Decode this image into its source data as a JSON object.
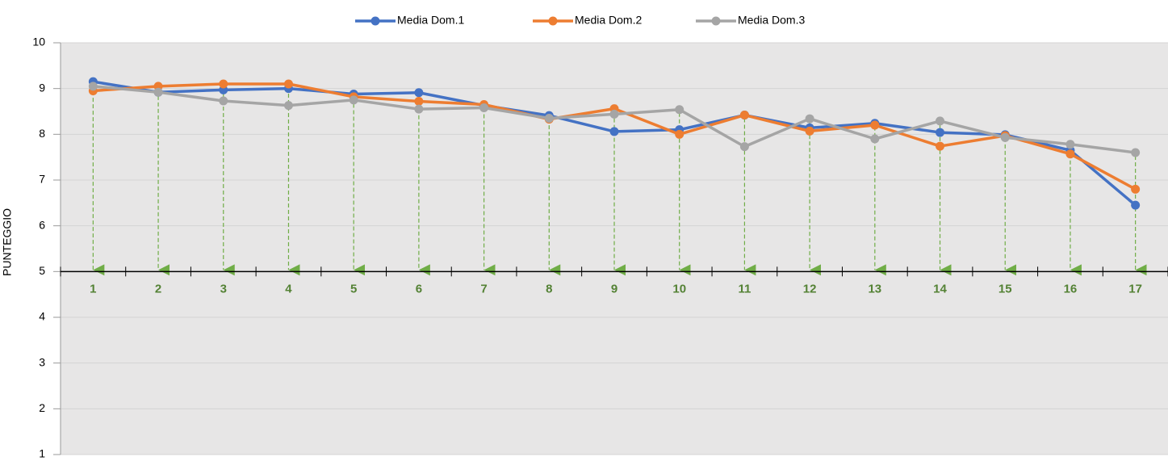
{
  "chart_data": {
    "type": "line",
    "y_label": "PUNTEGGIO",
    "categories": [
      "1",
      "2",
      "3",
      "4",
      "5",
      "6",
      "7",
      "8",
      "9",
      "10",
      "11",
      "12",
      "13",
      "14",
      "15",
      "16",
      "17"
    ],
    "series": [
      {
        "name": "Media Dom.1",
        "color": "#4472c4",
        "values": [
          9.15,
          8.92,
          8.97,
          9.0,
          8.88,
          8.91,
          8.63,
          8.41,
          8.06,
          8.1,
          8.42,
          8.14,
          8.24,
          8.04,
          7.99,
          7.65,
          6.45
        ]
      },
      {
        "name": "Media Dom.2",
        "color": "#ed7d31",
        "values": [
          8.95,
          9.05,
          9.1,
          9.1,
          8.82,
          8.72,
          8.65,
          8.33,
          8.56,
          8.0,
          8.42,
          8.07,
          8.2,
          7.74,
          7.97,
          7.57,
          6.8
        ]
      },
      {
        "name": "Media Dom.3",
        "color": "#a5a5a5",
        "values": [
          9.05,
          8.92,
          8.73,
          8.63,
          8.75,
          8.55,
          8.58,
          8.35,
          8.44,
          8.54,
          7.73,
          8.34,
          7.9,
          8.29,
          7.93,
          7.78,
          7.6
        ]
      }
    ],
    "ylim": [
      1,
      10
    ],
    "yticks": [
      1,
      2,
      3,
      4,
      5,
      6,
      7,
      8,
      9,
      10
    ],
    "x_axis_crosses": 5,
    "grid": true,
    "drop_lines": true,
    "drop_line_color": "#70ad47",
    "legend": "top"
  }
}
